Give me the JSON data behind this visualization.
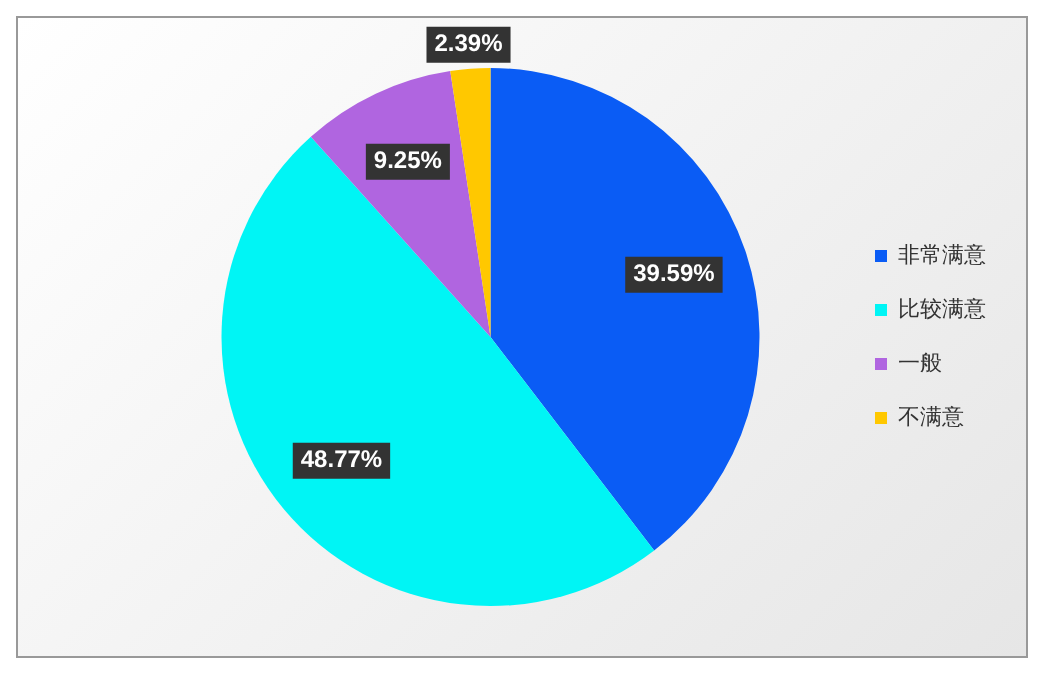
{
  "chart_data": {
    "type": "pie",
    "categories": [
      "非常满意",
      "比较满意",
      "一般",
      "不满意"
    ],
    "values": [
      39.59,
      48.77,
      9.25,
      2.39
    ],
    "colors": [
      "#0a5cf5",
      "#00f5f5",
      "#b065e0",
      "#ffc800"
    ],
    "value_labels": [
      "39.59%",
      "48.77%",
      "9.25%",
      "2.39%"
    ],
    "legend": "right"
  }
}
